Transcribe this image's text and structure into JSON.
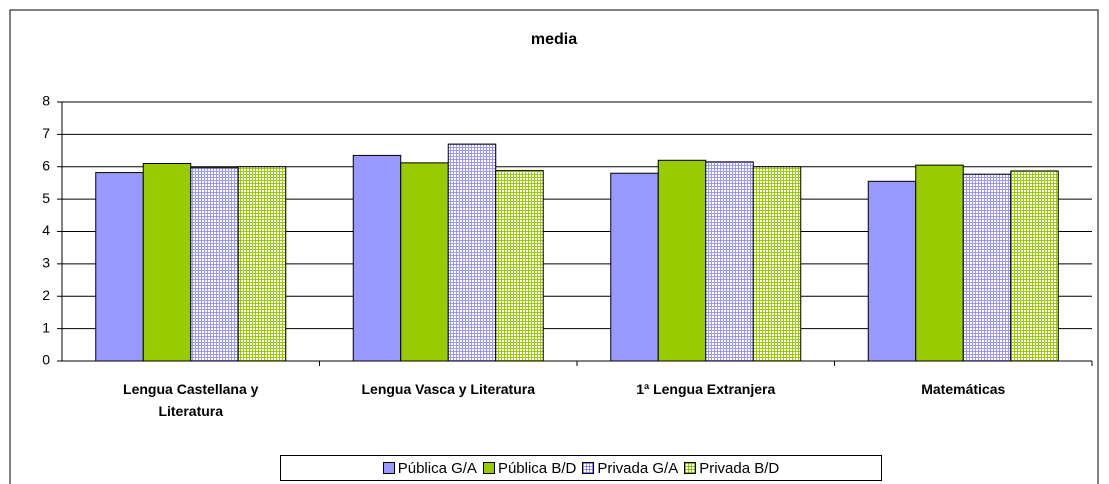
{
  "chart_data": {
    "type": "bar",
    "title": "media",
    "categories": [
      "Lengua Castellana y Literatura",
      "Lengua Vasca y Literatura",
      "1ª Lengua  Extranjera",
      "Matemáticas"
    ],
    "series": [
      {
        "name": "Pública G/A",
        "color": "#9999ff",
        "values": [
          5.82,
          6.35,
          5.8,
          5.55
        ]
      },
      {
        "name": "Pública B/D",
        "color": "#99cc00",
        "values": [
          6.1,
          6.12,
          6.2,
          6.05
        ]
      },
      {
        "name": "Privada G/A",
        "color": "#9999ff",
        "pattern": "grid",
        "values": [
          5.97,
          6.7,
          6.15,
          5.77
        ]
      },
      {
        "name": "Privada B/D",
        "color": "#99cc00",
        "pattern": "grid",
        "values": [
          6.0,
          5.88,
          6.0,
          5.87
        ]
      }
    ],
    "ylim": [
      0,
      8
    ],
    "yticks": [
      0,
      1,
      2,
      3,
      4,
      5,
      6,
      7,
      8
    ],
    "grid": true,
    "legend": "bottom"
  }
}
